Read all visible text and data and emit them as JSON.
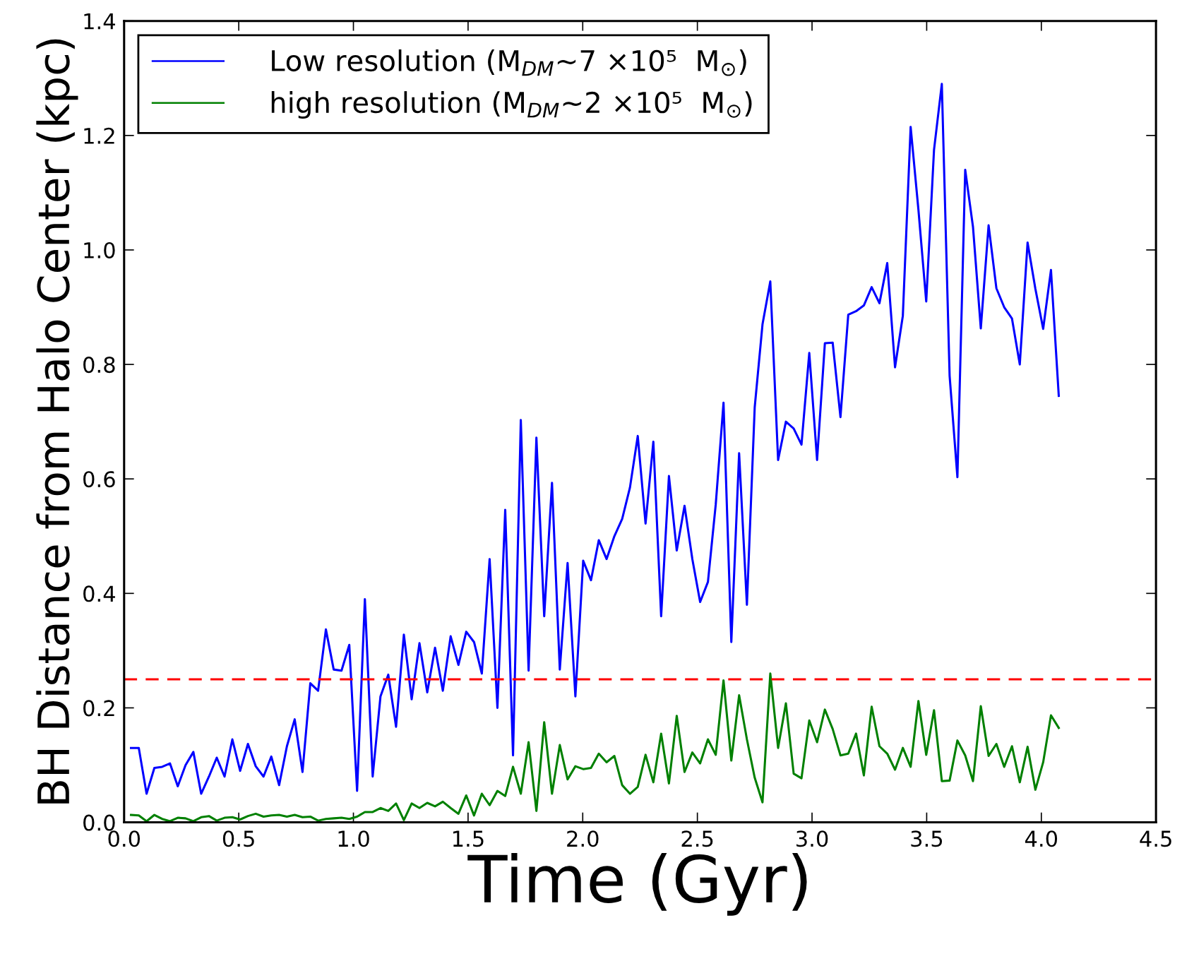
{
  "chart_data": {
    "type": "line",
    "xlabel": "Time (Gyr)",
    "ylabel": "BH Distance from Halo Center (kpc)",
    "x": [
      0.03,
      0.064,
      0.098,
      0.132,
      0.166,
      0.2,
      0.234,
      0.268,
      0.302,
      0.336,
      0.37,
      0.404,
      0.438,
      0.472,
      0.506,
      0.54,
      0.574,
      0.608,
      0.642,
      0.676,
      0.71,
      0.744,
      0.778,
      0.812,
      0.846,
      0.88,
      0.914,
      0.948,
      0.982,
      1.016,
      1.05,
      1.084,
      1.118,
      1.152,
      1.186,
      1.22,
      1.254,
      1.288,
      1.322,
      1.356,
      1.39,
      1.424,
      1.458,
      1.492,
      1.526,
      1.56,
      1.594,
      1.628,
      1.662,
      1.696,
      1.73,
      1.764,
      1.798,
      1.832,
      1.866,
      1.9,
      1.934,
      1.968,
      2.002,
      2.036,
      2.07,
      2.104,
      2.138,
      2.172,
      2.206,
      2.24,
      2.274,
      2.308,
      2.342,
      2.376,
      2.41,
      2.444,
      2.478,
      2.512,
      2.546,
      2.58,
      2.614,
      2.648,
      2.682,
      2.716,
      2.75,
      2.784,
      2.818,
      2.852,
      2.886,
      2.92,
      2.954,
      2.988,
      3.022,
      3.056,
      3.09,
      3.124,
      3.158,
      3.192,
      3.226,
      3.26,
      3.294,
      3.328,
      3.362,
      3.396,
      3.43,
      3.464,
      3.498,
      3.532,
      3.566,
      3.6,
      3.634,
      3.668,
      3.702,
      3.736,
      3.77,
      3.804,
      3.838,
      3.872,
      3.906,
      3.94,
      3.974,
      4.008,
      4.042,
      4.076
    ],
    "series": [
      {
        "name": "Low resolution (M$_{DM}$∼7 ×10⁵  M$_{⊙}$)",
        "color": "#0000ff",
        "values": [
          0.13,
          0.13,
          0.05,
          0.095,
          0.097,
          0.103,
          0.063,
          0.1,
          0.123,
          0.05,
          0.08,
          0.113,
          0.08,
          0.145,
          0.09,
          0.137,
          0.098,
          0.08,
          0.115,
          0.065,
          0.133,
          0.18,
          0.088,
          0.243,
          0.23,
          0.337,
          0.267,
          0.265,
          0.31,
          0.055,
          0.39,
          0.08,
          0.22,
          0.258,
          0.167,
          0.328,
          0.215,
          0.313,
          0.227,
          0.305,
          0.23,
          0.325,
          0.275,
          0.333,
          0.315,
          0.26,
          0.46,
          0.2,
          0.546,
          0.117,
          0.703,
          0.265,
          0.672,
          0.36,
          0.593,
          0.267,
          0.453,
          0.22,
          0.457,
          0.423,
          0.493,
          0.46,
          0.5,
          0.53,
          0.585,
          0.675,
          0.522,
          0.665,
          0.36,
          0.605,
          0.475,
          0.553,
          0.46,
          0.385,
          0.42,
          0.555,
          0.733,
          0.315,
          0.645,
          0.38,
          0.725,
          0.87,
          0.945,
          0.633,
          0.7,
          0.688,
          0.66,
          0.82,
          0.633,
          0.837,
          0.838,
          0.708,
          0.887,
          0.893,
          0.903,
          0.935,
          0.907,
          0.977,
          0.795,
          0.885,
          1.215,
          1.07,
          0.91,
          1.175,
          1.29,
          0.78,
          0.603,
          1.14,
          1.04,
          0.863,
          1.043,
          0.933,
          0.9,
          0.88,
          0.8,
          1.013,
          0.932,
          0.862,
          0.965,
          0.745
        ]
      },
      {
        "name": "high resolution (M$_{DM}$∼2 ×10⁵  M$_{⊙}$)",
        "color": "#008000",
        "values": [
          0.013,
          0.012,
          0.002,
          0.013,
          0.006,
          0.002,
          0.008,
          0.007,
          0.002,
          0.009,
          0.011,
          0.003,
          0.008,
          0.009,
          0.005,
          0.011,
          0.015,
          0.01,
          0.012,
          0.013,
          0.01,
          0.013,
          0.009,
          0.01,
          0.003,
          0.006,
          0.007,
          0.008,
          0.006,
          0.01,
          0.018,
          0.018,
          0.025,
          0.02,
          0.033,
          0.004,
          0.033,
          0.025,
          0.034,
          0.028,
          0.036,
          0.025,
          0.015,
          0.047,
          0.012,
          0.05,
          0.03,
          0.055,
          0.046,
          0.097,
          0.05,
          0.14,
          0.02,
          0.175,
          0.05,
          0.135,
          0.075,
          0.098,
          0.093,
          0.095,
          0.12,
          0.105,
          0.116,
          0.065,
          0.05,
          0.062,
          0.118,
          0.07,
          0.155,
          0.068,
          0.186,
          0.088,
          0.122,
          0.103,
          0.145,
          0.118,
          0.248,
          0.108,
          0.222,
          0.145,
          0.078,
          0.035,
          0.26,
          0.13,
          0.208,
          0.085,
          0.077,
          0.178,
          0.14,
          0.197,
          0.163,
          0.117,
          0.12,
          0.155,
          0.082,
          0.202,
          0.133,
          0.12,
          0.092,
          0.13,
          0.097,
          0.212,
          0.118,
          0.196,
          0.072,
          0.073,
          0.143,
          0.117,
          0.072,
          0.203,
          0.116,
          0.137,
          0.097,
          0.133,
          0.07,
          0.132,
          0.057,
          0.105,
          0.187,
          0.165
        ]
      }
    ],
    "ref_lines": [
      {
        "axis": "y",
        "value": 0.25,
        "color": "#ff0000",
        "line_style": "dashed"
      }
    ],
    "xlim": [
      0.0,
      4.5
    ],
    "xticks": [
      {
        "value": 0,
        "label": "0.0"
      },
      0.5,
      {
        "value": 1,
        "label": "1.0"
      },
      1.5,
      {
        "value": 2,
        "label": "2.0"
      },
      2.5,
      {
        "value": 3,
        "label": "3.0"
      },
      3.5,
      {
        "value": 4,
        "label": "4.0"
      },
      4.5
    ],
    "ylim": [
      0.0,
      1.4
    ],
    "yticks": [
      {
        "value": 0,
        "label": "0.0"
      },
      0.2,
      0.4,
      0.6,
      0.8,
      {
        "value": 1,
        "label": "1.0"
      },
      1.2,
      1.4
    ],
    "legend": "top left",
    "grid": false,
    "line_style": "solid",
    "marker": "none"
  }
}
